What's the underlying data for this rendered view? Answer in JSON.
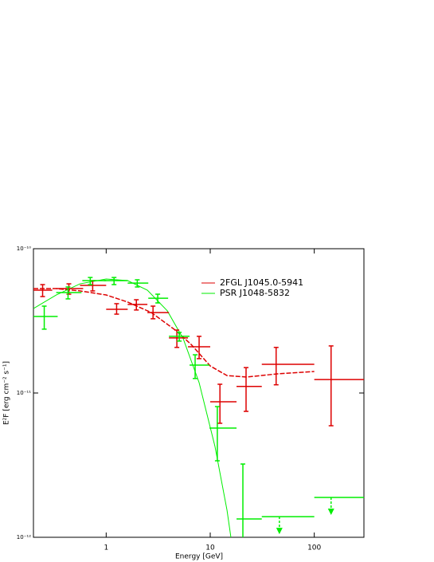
{
  "chart_data": {
    "type": "sed",
    "xlabel": "Energy [GeV]",
    "ylabel": "E²F [erg cm⁻² s⁻¹]",
    "xscale": "log",
    "yscale": "log",
    "xlim": [
      0.2,
      300
    ],
    "ylim": [
      1e-12,
      1e-10
    ],
    "xticks": [
      1,
      10,
      100
    ],
    "yticks": [
      {
        "value": 1e-12,
        "label": "10⁻¹²"
      },
      {
        "value": 1e-11,
        "label": "10⁻¹¹"
      },
      {
        "value": 1e-10,
        "label": "10⁻¹⁰"
      }
    ],
    "legend": "upper center",
    "series": [
      {
        "name": "2FGL J1045.0-5941",
        "color": "#dd0000",
        "x": [
          0.245,
          0.438,
          0.742,
          1.26,
          1.95,
          2.82,
          4.78,
          7.82,
          12.4,
          22.1,
          43,
          145
        ],
        "y": [
          5.16e-11,
          5.29e-11,
          5.57e-11,
          3.8e-11,
          4.11e-11,
          3.61e-11,
          2.41e-11,
          2.09e-11,
          8.69e-12,
          1.11e-11,
          1.58e-11,
          1.24e-11
        ],
        "x_low": [
          0.2,
          0.331,
          0.56,
          1,
          1.61,
          2.49,
          4.01,
          6.11,
          10,
          17.9,
          31.3,
          100
        ],
        "x_high": [
          0.303,
          0.601,
          1,
          1.61,
          2.49,
          4.01,
          6.11,
          10,
          17.9,
          31.3,
          100,
          300
        ],
        "y_low": [
          4.66e-11,
          4.84e-11,
          5.1e-11,
          3.52e-11,
          3.76e-11,
          3.27e-11,
          2.07e-11,
          1.73e-11,
          6.17e-12,
          7.46e-12,
          1.14e-11,
          5.93e-12
        ],
        "y_high": [
          5.64e-11,
          5.71e-11,
          6.01e-11,
          4.16e-11,
          4.43e-11,
          4e-11,
          2.73e-11,
          2.47e-11,
          1.15e-11,
          1.5e-11,
          2.07e-11,
          2.12e-11
        ],
        "upper_limit": [
          false,
          false,
          false,
          false,
          false,
          false,
          false,
          false,
          false,
          false,
          false,
          false
        ]
      },
      {
        "name": "PSR J1048-5832",
        "color": "#00ee00",
        "x": [
          0.254,
          0.43,
          0.703,
          1.19,
          1.99,
          3.13,
          5.04,
          7.16,
          11.7,
          20.6,
          46.2,
          145
        ],
        "y": [
          3.39e-11,
          4.97e-11,
          6.01e-11,
          6.01e-11,
          5.78e-11,
          4.54e-11,
          2.47e-11,
          1.56e-11,
          5.71e-12,
          1.34e-12,
          1.39e-12,
          1.89e-12
        ],
        "x_low": [
          0.2,
          0.331,
          0.59,
          0.949,
          1.61,
          2.54,
          4.01,
          6.33,
          9.83,
          17.9,
          31.3,
          100
        ],
        "x_high": [
          0.342,
          0.58,
          1,
          1.61,
          2.54,
          3.94,
          6.33,
          9.83,
          17.9,
          31.3,
          100,
          300
        ],
        "y_low": [
          2.77e-11,
          4.49e-11,
          5.64e-11,
          5.64e-11,
          5.43e-11,
          4.21e-11,
          2.29e-11,
          1.26e-11,
          3.39e-12,
          8e-13,
          null,
          null
        ],
        "y_high": [
          4e-11,
          5.43e-11,
          6.32e-11,
          6.32e-11,
          6.09e-11,
          4.84e-11,
          2.63e-11,
          1.84e-11,
          8.05e-12,
          3.22e-12,
          null,
          null
        ],
        "upper_limit": [
          false,
          false,
          false,
          false,
          false,
          false,
          false,
          false,
          false,
          false,
          true,
          true
        ]
      }
    ],
    "models": [
      {
        "color": "#dd0000",
        "dashed": true,
        "x": [
          0.2,
          0.331,
          0.56,
          1,
          1.61,
          2.72,
          4.61,
          6.56,
          10,
          14.5,
          22.5,
          45.3,
          100
        ],
        "y": [
          5.29e-11,
          5.29e-11,
          5.1e-11,
          4.78e-11,
          4.27e-11,
          3.61e-11,
          2.73e-11,
          2.17e-11,
          1.54e-11,
          1.32e-11,
          1.29e-11,
          1.36e-11,
          1.41e-11
        ]
      },
      {
        "color": "#00ee00",
        "dashed": false,
        "x": [
          0.2,
          0.331,
          0.56,
          1,
          1.61,
          2.49,
          3.87,
          5.5,
          7.82,
          11.1,
          14.5,
          15.8
        ],
        "y": [
          3.85e-11,
          4.78e-11,
          5.71e-11,
          6.17e-11,
          6.01e-11,
          5.16e-11,
          3.71e-11,
          2.38e-11,
          1.18e-11,
          4.27e-12,
          1.54e-12,
          1e-12
        ]
      }
    ]
  }
}
